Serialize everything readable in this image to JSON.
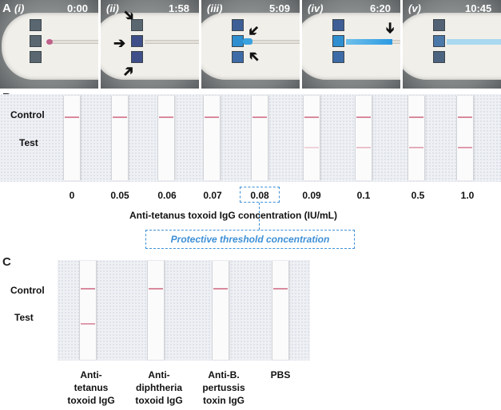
{
  "panel_a": {
    "letter": "A",
    "frames": [
      {
        "label": "(i)",
        "time": "0:00"
      },
      {
        "label": "(ii)",
        "time": "1:58"
      },
      {
        "label": "(iii)",
        "time": "5:09"
      },
      {
        "label": "(iv)",
        "time": "6:20"
      },
      {
        "label": "(v)",
        "time": "10:45"
      }
    ]
  },
  "panel_b": {
    "letter": "B",
    "row_control": "Control",
    "row_test": "Test",
    "concentrations": [
      "0",
      "0.05",
      "0.06",
      "0.07",
      "0.08",
      "0.09",
      "0.1",
      "0.5",
      "1.0"
    ],
    "axis_label": "Anti-tetanus toxoid IgG concentration (IU/mL)",
    "threshold_label": "Protective threshold concentration",
    "threshold_value": "0.08"
  },
  "panel_c": {
    "letter": "C",
    "row_control": "Control",
    "row_test": "Test",
    "samples": [
      {
        "l1": "Anti-",
        "l2": "tetanus",
        "l3": "toxoid IgG"
      },
      {
        "l1": "Anti-",
        "l2": "diphtheria",
        "l3": "toxoid IgG"
      },
      {
        "l1": "Anti-B.",
        "l2": "pertussis",
        "l3": "toxin IgG"
      },
      {
        "l1": "PBS",
        "l2": "",
        "l3": ""
      }
    ]
  },
  "colors": {
    "line": "#d98a9e",
    "accent": "#3d8fd6"
  }
}
